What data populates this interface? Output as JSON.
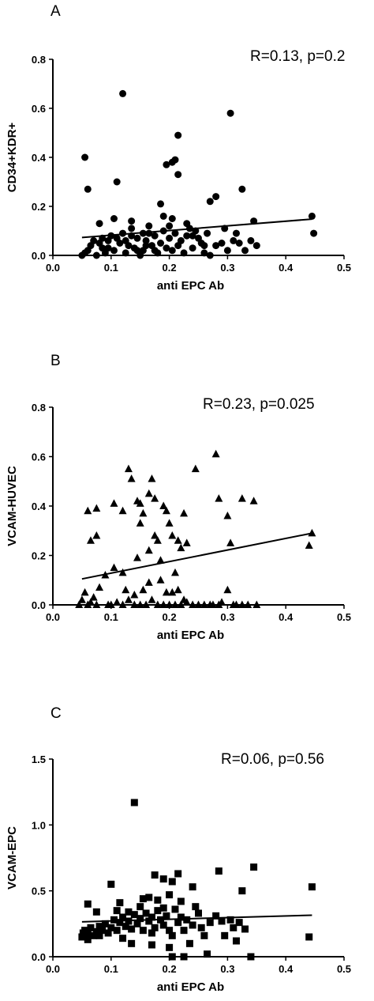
{
  "chart_data": [
    {
      "type": "scatter",
      "panel_label": "A",
      "annotation": "R=0.13, p=0.2",
      "xlabel": "anti EPC Ab",
      "ylabel": "CD34+KDR+",
      "xlim": [
        0.0,
        0.5
      ],
      "ylim": [
        0.0,
        0.8
      ],
      "xticks": [
        "0.0",
        "0.1",
        "0.2",
        "0.3",
        "0.4",
        "0.5"
      ],
      "yticks": [
        "0.0",
        "0.2",
        "0.4",
        "0.6",
        "0.8"
      ],
      "marker": "circle",
      "grid": false,
      "trendline": {
        "x": [
          0.05,
          0.445
        ],
        "y": [
          0.073,
          0.148
        ]
      },
      "points": [
        [
          0.055,
          0.4
        ],
        [
          0.06,
          0.27
        ],
        [
          0.11,
          0.3
        ],
        [
          0.12,
          0.66
        ],
        [
          0.185,
          0.21
        ],
        [
          0.195,
          0.37
        ],
        [
          0.205,
          0.38
        ],
        [
          0.21,
          0.39
        ],
        [
          0.215,
          0.49
        ],
        [
          0.215,
          0.33
        ],
        [
          0.305,
          0.58
        ],
        [
          0.27,
          0.22
        ],
        [
          0.28,
          0.24
        ],
        [
          0.325,
          0.27
        ],
        [
          0.205,
          0.15
        ],
        [
          0.23,
          0.13
        ],
        [
          0.105,
          0.15
        ],
        [
          0.135,
          0.14
        ],
        [
          0.165,
          0.12
        ],
        [
          0.19,
          0.16
        ],
        [
          0.08,
          0.13
        ],
        [
          0.345,
          0.14
        ],
        [
          0.445,
          0.16
        ],
        [
          0.448,
          0.09
        ],
        [
          0.05,
          0.0
        ],
        [
          0.055,
          0.01
        ],
        [
          0.06,
          0.02
        ],
        [
          0.065,
          0.04
        ],
        [
          0.07,
          0.06
        ],
        [
          0.075,
          0.0
        ],
        [
          0.08,
          0.05
        ],
        [
          0.085,
          0.03
        ],
        [
          0.09,
          0.01
        ],
        [
          0.095,
          0.06
        ],
        [
          0.1,
          0.08
        ],
        [
          0.105,
          0.02
        ],
        [
          0.11,
          0.07
        ],
        [
          0.115,
          0.05
        ],
        [
          0.12,
          0.09
        ],
        [
          0.125,
          0.01
        ],
        [
          0.13,
          0.04
        ],
        [
          0.135,
          0.11
        ],
        [
          0.14,
          0.03
        ],
        [
          0.145,
          0.07
        ],
        [
          0.15,
          0.0
        ],
        [
          0.155,
          0.02
        ],
        [
          0.16,
          0.06
        ],
        [
          0.165,
          0.09
        ],
        [
          0.17,
          0.04
        ],
        [
          0.175,
          0.08
        ],
        [
          0.18,
          0.01
        ],
        [
          0.185,
          0.05
        ],
        [
          0.19,
          0.1
        ],
        [
          0.195,
          0.03
        ],
        [
          0.2,
          0.07
        ],
        [
          0.205,
          0.02
        ],
        [
          0.21,
          0.09
        ],
        [
          0.215,
          0.04
        ],
        [
          0.22,
          0.06
        ],
        [
          0.225,
          0.01
        ],
        [
          0.23,
          0.08
        ],
        [
          0.235,
          0.11
        ],
        [
          0.24,
          0.03
        ],
        [
          0.245,
          0.1
        ],
        [
          0.25,
          0.07
        ],
        [
          0.255,
          0.05
        ],
        [
          0.26,
          0.01
        ],
        [
          0.265,
          0.09
        ],
        [
          0.27,
          0.0
        ],
        [
          0.28,
          0.04
        ],
        [
          0.29,
          0.05
        ],
        [
          0.295,
          0.11
        ],
        [
          0.3,
          0.02
        ],
        [
          0.31,
          0.06
        ],
        [
          0.315,
          0.09
        ],
        [
          0.32,
          0.05
        ],
        [
          0.33,
          0.02
        ],
        [
          0.34,
          0.06
        ],
        [
          0.35,
          0.04
        ],
        [
          0.125,
          0.06
        ],
        [
          0.145,
          0.02
        ],
        [
          0.16,
          0.04
        ],
        [
          0.175,
          0.02
        ],
        [
          0.085,
          0.07
        ],
        [
          0.095,
          0.03
        ],
        [
          0.2,
          0.12
        ],
        [
          0.24,
          0.08
        ],
        [
          0.26,
          0.04
        ],
        [
          0.135,
          0.08
        ],
        [
          0.155,
          0.09
        ]
      ]
    },
    {
      "type": "scatter",
      "panel_label": "B",
      "annotation": "R=0.23, p=0.025",
      "xlabel": "anti EPC Ab",
      "ylabel": "VCAM-HUVEC",
      "xlim": [
        0.0,
        0.5
      ],
      "ylim": [
        0.0,
        0.8
      ],
      "xticks": [
        "0.0",
        "0.1",
        "0.2",
        "0.3",
        "0.4",
        "0.5"
      ],
      "yticks": [
        "0.0",
        "0.2",
        "0.4",
        "0.6",
        "0.8"
      ],
      "marker": "triangle",
      "grid": false,
      "trendline": {
        "x": [
          0.05,
          0.445
        ],
        "y": [
          0.105,
          0.29
        ]
      },
      "points": [
        [
          0.06,
          0.38
        ],
        [
          0.065,
          0.26
        ],
        [
          0.075,
          0.39
        ],
        [
          0.075,
          0.28
        ],
        [
          0.105,
          0.41
        ],
        [
          0.12,
          0.38
        ],
        [
          0.13,
          0.55
        ],
        [
          0.135,
          0.51
        ],
        [
          0.145,
          0.42
        ],
        [
          0.15,
          0.41
        ],
        [
          0.15,
          0.33
        ],
        [
          0.155,
          0.37
        ],
        [
          0.165,
          0.45
        ],
        [
          0.17,
          0.51
        ],
        [
          0.175,
          0.43
        ],
        [
          0.175,
          0.28
        ],
        [
          0.18,
          0.26
        ],
        [
          0.19,
          0.4
        ],
        [
          0.195,
          0.38
        ],
        [
          0.2,
          0.33
        ],
        [
          0.205,
          0.28
        ],
        [
          0.215,
          0.26
        ],
        [
          0.22,
          0.23
        ],
        [
          0.225,
          0.37
        ],
        [
          0.23,
          0.25
        ],
        [
          0.245,
          0.55
        ],
        [
          0.28,
          0.61
        ],
        [
          0.285,
          0.43
        ],
        [
          0.3,
          0.36
        ],
        [
          0.305,
          0.25
        ],
        [
          0.325,
          0.43
        ],
        [
          0.345,
          0.42
        ],
        [
          0.445,
          0.29
        ],
        [
          0.44,
          0.24
        ],
        [
          0.1,
          0.0
        ],
        [
          0.105,
          0.15
        ],
        [
          0.12,
          0.13
        ],
        [
          0.125,
          0.06
        ],
        [
          0.14,
          0.04
        ],
        [
          0.145,
          0.19
        ],
        [
          0.165,
          0.09
        ],
        [
          0.185,
          0.18
        ],
        [
          0.21,
          0.13
        ],
        [
          0.215,
          0.06
        ],
        [
          0.225,
          0.02
        ],
        [
          0.3,
          0.06
        ],
        [
          0.045,
          0.0
        ],
        [
          0.05,
          0.02
        ],
        [
          0.055,
          0.05
        ],
        [
          0.06,
          0.0
        ],
        [
          0.065,
          0.01
        ],
        [
          0.07,
          0.03
        ],
        [
          0.075,
          0.0
        ],
        [
          0.08,
          0.07
        ],
        [
          0.09,
          0.12
        ],
        [
          0.095,
          0.0
        ],
        [
          0.11,
          0.01
        ],
        [
          0.12,
          0.0
        ],
        [
          0.13,
          0.02
        ],
        [
          0.14,
          0.0
        ],
        [
          0.15,
          0.0
        ],
        [
          0.155,
          0.06
        ],
        [
          0.16,
          0.0
        ],
        [
          0.17,
          0.02
        ],
        [
          0.18,
          0.0
        ],
        [
          0.19,
          0.0
        ],
        [
          0.195,
          0.05
        ],
        [
          0.2,
          0.0
        ],
        [
          0.21,
          0.0
        ],
        [
          0.22,
          0.0
        ],
        [
          0.23,
          0.01
        ],
        [
          0.24,
          0.0
        ],
        [
          0.25,
          0.0
        ],
        [
          0.26,
          0.0
        ],
        [
          0.27,
          0.0
        ],
        [
          0.275,
          0.0
        ],
        [
          0.285,
          0.0
        ],
        [
          0.29,
          0.01
        ],
        [
          0.31,
          0.0
        ],
        [
          0.315,
          0.0
        ],
        [
          0.325,
          0.0
        ],
        [
          0.335,
          0.0
        ],
        [
          0.35,
          0.0
        ],
        [
          0.165,
          0.22
        ],
        [
          0.185,
          0.1
        ],
        [
          0.205,
          0.05
        ]
      ]
    },
    {
      "type": "scatter",
      "panel_label": "C",
      "annotation": "R=0.06, p=0.56",
      "xlabel": "anti EPC Ab",
      "ylabel": "VCAM-EPC",
      "xlim": [
        0.0,
        0.5
      ],
      "ylim": [
        0.0,
        1.5
      ],
      "xticks": [
        "0.0",
        "0.1",
        "0.2",
        "0.3",
        "0.4",
        "0.5"
      ],
      "yticks": [
        "0.0",
        "0.5",
        "1.0",
        "1.5"
      ],
      "marker": "square",
      "grid": false,
      "trendline": {
        "x": [
          0.05,
          0.445
        ],
        "y": [
          0.265,
          0.315
        ]
      },
      "points": [
        [
          0.14,
          1.17
        ],
        [
          0.1,
          0.55
        ],
        [
          0.175,
          0.62
        ],
        [
          0.19,
          0.59
        ],
        [
          0.205,
          0.57
        ],
        [
          0.215,
          0.63
        ],
        [
          0.24,
          0.53
        ],
        [
          0.285,
          0.65
        ],
        [
          0.345,
          0.68
        ],
        [
          0.445,
          0.53
        ],
        [
          0.44,
          0.15
        ],
        [
          0.06,
          0.4
        ],
        [
          0.075,
          0.34
        ],
        [
          0.115,
          0.41
        ],
        [
          0.13,
          0.34
        ],
        [
          0.155,
          0.44
        ],
        [
          0.165,
          0.45
        ],
        [
          0.18,
          0.43
        ],
        [
          0.2,
          0.47
        ],
        [
          0.22,
          0.42
        ],
        [
          0.245,
          0.38
        ],
        [
          0.325,
          0.5
        ],
        [
          0.265,
          0.02
        ],
        [
          0.205,
          0.0
        ],
        [
          0.225,
          0.0
        ],
        [
          0.34,
          0.0
        ],
        [
          0.06,
          0.13
        ],
        [
          0.08,
          0.16
        ],
        [
          0.12,
          0.14
        ],
        [
          0.135,
          0.1
        ],
        [
          0.17,
          0.09
        ],
        [
          0.2,
          0.07
        ],
        [
          0.205,
          0.16
        ],
        [
          0.315,
          0.12
        ],
        [
          0.33,
          0.21
        ],
        [
          0.05,
          0.15
        ],
        [
          0.052,
          0.18
        ],
        [
          0.055,
          0.2
        ],
        [
          0.06,
          0.17
        ],
        [
          0.065,
          0.22
        ],
        [
          0.07,
          0.16
        ],
        [
          0.075,
          0.19
        ],
        [
          0.08,
          0.23
        ],
        [
          0.085,
          0.2
        ],
        [
          0.09,
          0.25
        ],
        [
          0.095,
          0.18
        ],
        [
          0.1,
          0.22
        ],
        [
          0.105,
          0.28
        ],
        [
          0.11,
          0.2
        ],
        [
          0.115,
          0.26
        ],
        [
          0.12,
          0.3
        ],
        [
          0.125,
          0.23
        ],
        [
          0.13,
          0.27
        ],
        [
          0.135,
          0.21
        ],
        [
          0.14,
          0.32
        ],
        [
          0.145,
          0.25
        ],
        [
          0.15,
          0.29
        ],
        [
          0.155,
          0.2
        ],
        [
          0.16,
          0.33
        ],
        [
          0.165,
          0.27
        ],
        [
          0.17,
          0.3
        ],
        [
          0.175,
          0.22
        ],
        [
          0.18,
          0.35
        ],
        [
          0.185,
          0.28
        ],
        [
          0.19,
          0.24
        ],
        [
          0.195,
          0.31
        ],
        [
          0.2,
          0.2
        ],
        [
          0.21,
          0.36
        ],
        [
          0.215,
          0.26
        ],
        [
          0.22,
          0.3
        ],
        [
          0.225,
          0.2
        ],
        [
          0.23,
          0.28
        ],
        [
          0.24,
          0.24
        ],
        [
          0.25,
          0.33
        ],
        [
          0.255,
          0.22
        ],
        [
          0.26,
          0.16
        ],
        [
          0.27,
          0.26
        ],
        [
          0.28,
          0.31
        ],
        [
          0.29,
          0.27
        ],
        [
          0.295,
          0.16
        ],
        [
          0.305,
          0.28
        ],
        [
          0.31,
          0.22
        ],
        [
          0.32,
          0.26
        ],
        [
          0.11,
          0.35
        ],
        [
          0.15,
          0.38
        ],
        [
          0.17,
          0.18
        ],
        [
          0.19,
          0.37
        ],
        [
          0.235,
          0.1
        ]
      ]
    }
  ]
}
